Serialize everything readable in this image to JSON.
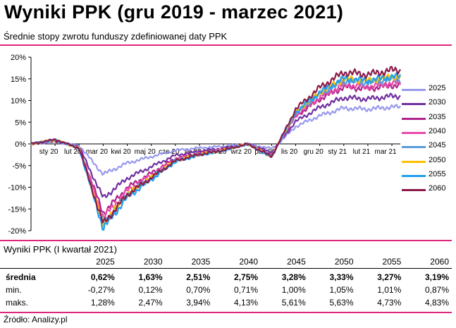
{
  "header": {
    "title": "Wyniki PPK  (gru 2019 - marzec 2021)",
    "subtitle": "Średnie stopy zwrotu funduszy zdefiniowanej daty PPK"
  },
  "chart_data": {
    "type": "line",
    "title": "",
    "xlabel": "",
    "ylabel": "",
    "ylim": [
      -20,
      20
    ],
    "y_ticks": [
      "20%",
      "15%",
      "10%",
      "5%",
      "0%",
      "-5%",
      "-10%",
      "-15%",
      "-20%"
    ],
    "y_tick_values": [
      20,
      15,
      10,
      5,
      0,
      -5,
      -10,
      -15,
      -20
    ],
    "x_ticks": [
      "sty 20",
      "lut 20",
      "mar 20",
      "kwi 20",
      "maj 20",
      "cze 20",
      "lip 20",
      "sie 20",
      "wrz 20",
      "paź 20",
      "lis 20",
      "gru 20",
      "sty 21",
      "lut 21",
      "mar 21"
    ],
    "x_months": [
      "2019-12",
      "2020-01",
      "2020-02",
      "2020-03",
      "2020-04",
      "2020-05",
      "2020-06",
      "2020-07",
      "2020-08",
      "2020-09",
      "2020-10",
      "2020-11",
      "2020-12",
      "2021-01",
      "2021-02",
      "2021-03"
    ],
    "base_path_pct_of_2060": [
      0,
      1.0,
      -1.0,
      -19.0,
      -12.0,
      -8.0,
      -4.0,
      -2.5,
      -1.5,
      0.0,
      -3.0,
      8.0,
      13.0,
      16.5,
      16.0,
      17.0
    ],
    "legend_position": "right",
    "grid": false,
    "series": [
      {
        "name": "2025",
        "color": "#9999ee",
        "end_value": 8.5,
        "trough": -7.0
      },
      {
        "name": "2030",
        "color": "#7030a0",
        "end_value": 11.0,
        "trough": -12.5
      },
      {
        "name": "2035",
        "color": "#b0228c",
        "end_value": 13.5,
        "trough": -16.0
      },
      {
        "name": "2040",
        "color": "#e84aa8",
        "end_value": 14.0,
        "trough": -17.0
      },
      {
        "name": "2045",
        "color": "#5b9bd5",
        "end_value": 15.0,
        "trough": -18.5
      },
      {
        "name": "2050",
        "color": "#ffc000",
        "end_value": 15.5,
        "trough": -18.5
      },
      {
        "name": "2055",
        "color": "#1f9ff0",
        "end_value": 15.5,
        "trough": -19.5
      },
      {
        "name": "2060",
        "color": "#8b1a4a",
        "end_value": 17.0,
        "trough": -18.5
      }
    ]
  },
  "table": {
    "title": "Wyniki PPK (I kwartał 2021)",
    "columns": [
      "2025",
      "2030",
      "2035",
      "2040",
      "2045",
      "2050",
      "2055",
      "2060"
    ],
    "rows": [
      {
        "label": "średnia",
        "values": [
          "0,62%",
          "1,63%",
          "2,51%",
          "2,75%",
          "3,28%",
          "3,33%",
          "3,27%",
          "3,19%"
        ]
      },
      {
        "label": "min.",
        "values": [
          "-0,27%",
          "0,12%",
          "0,70%",
          "0,71%",
          "1,00%",
          "1,05%",
          "1,01%",
          "0,87%"
        ]
      },
      {
        "label": "maks.",
        "values": [
          "1,28%",
          "2,47%",
          "3,94%",
          "4,13%",
          "5,61%",
          "5,63%",
          "4,73%",
          "4,83%"
        ]
      }
    ]
  },
  "source": "Źródło: Analizy.pl"
}
